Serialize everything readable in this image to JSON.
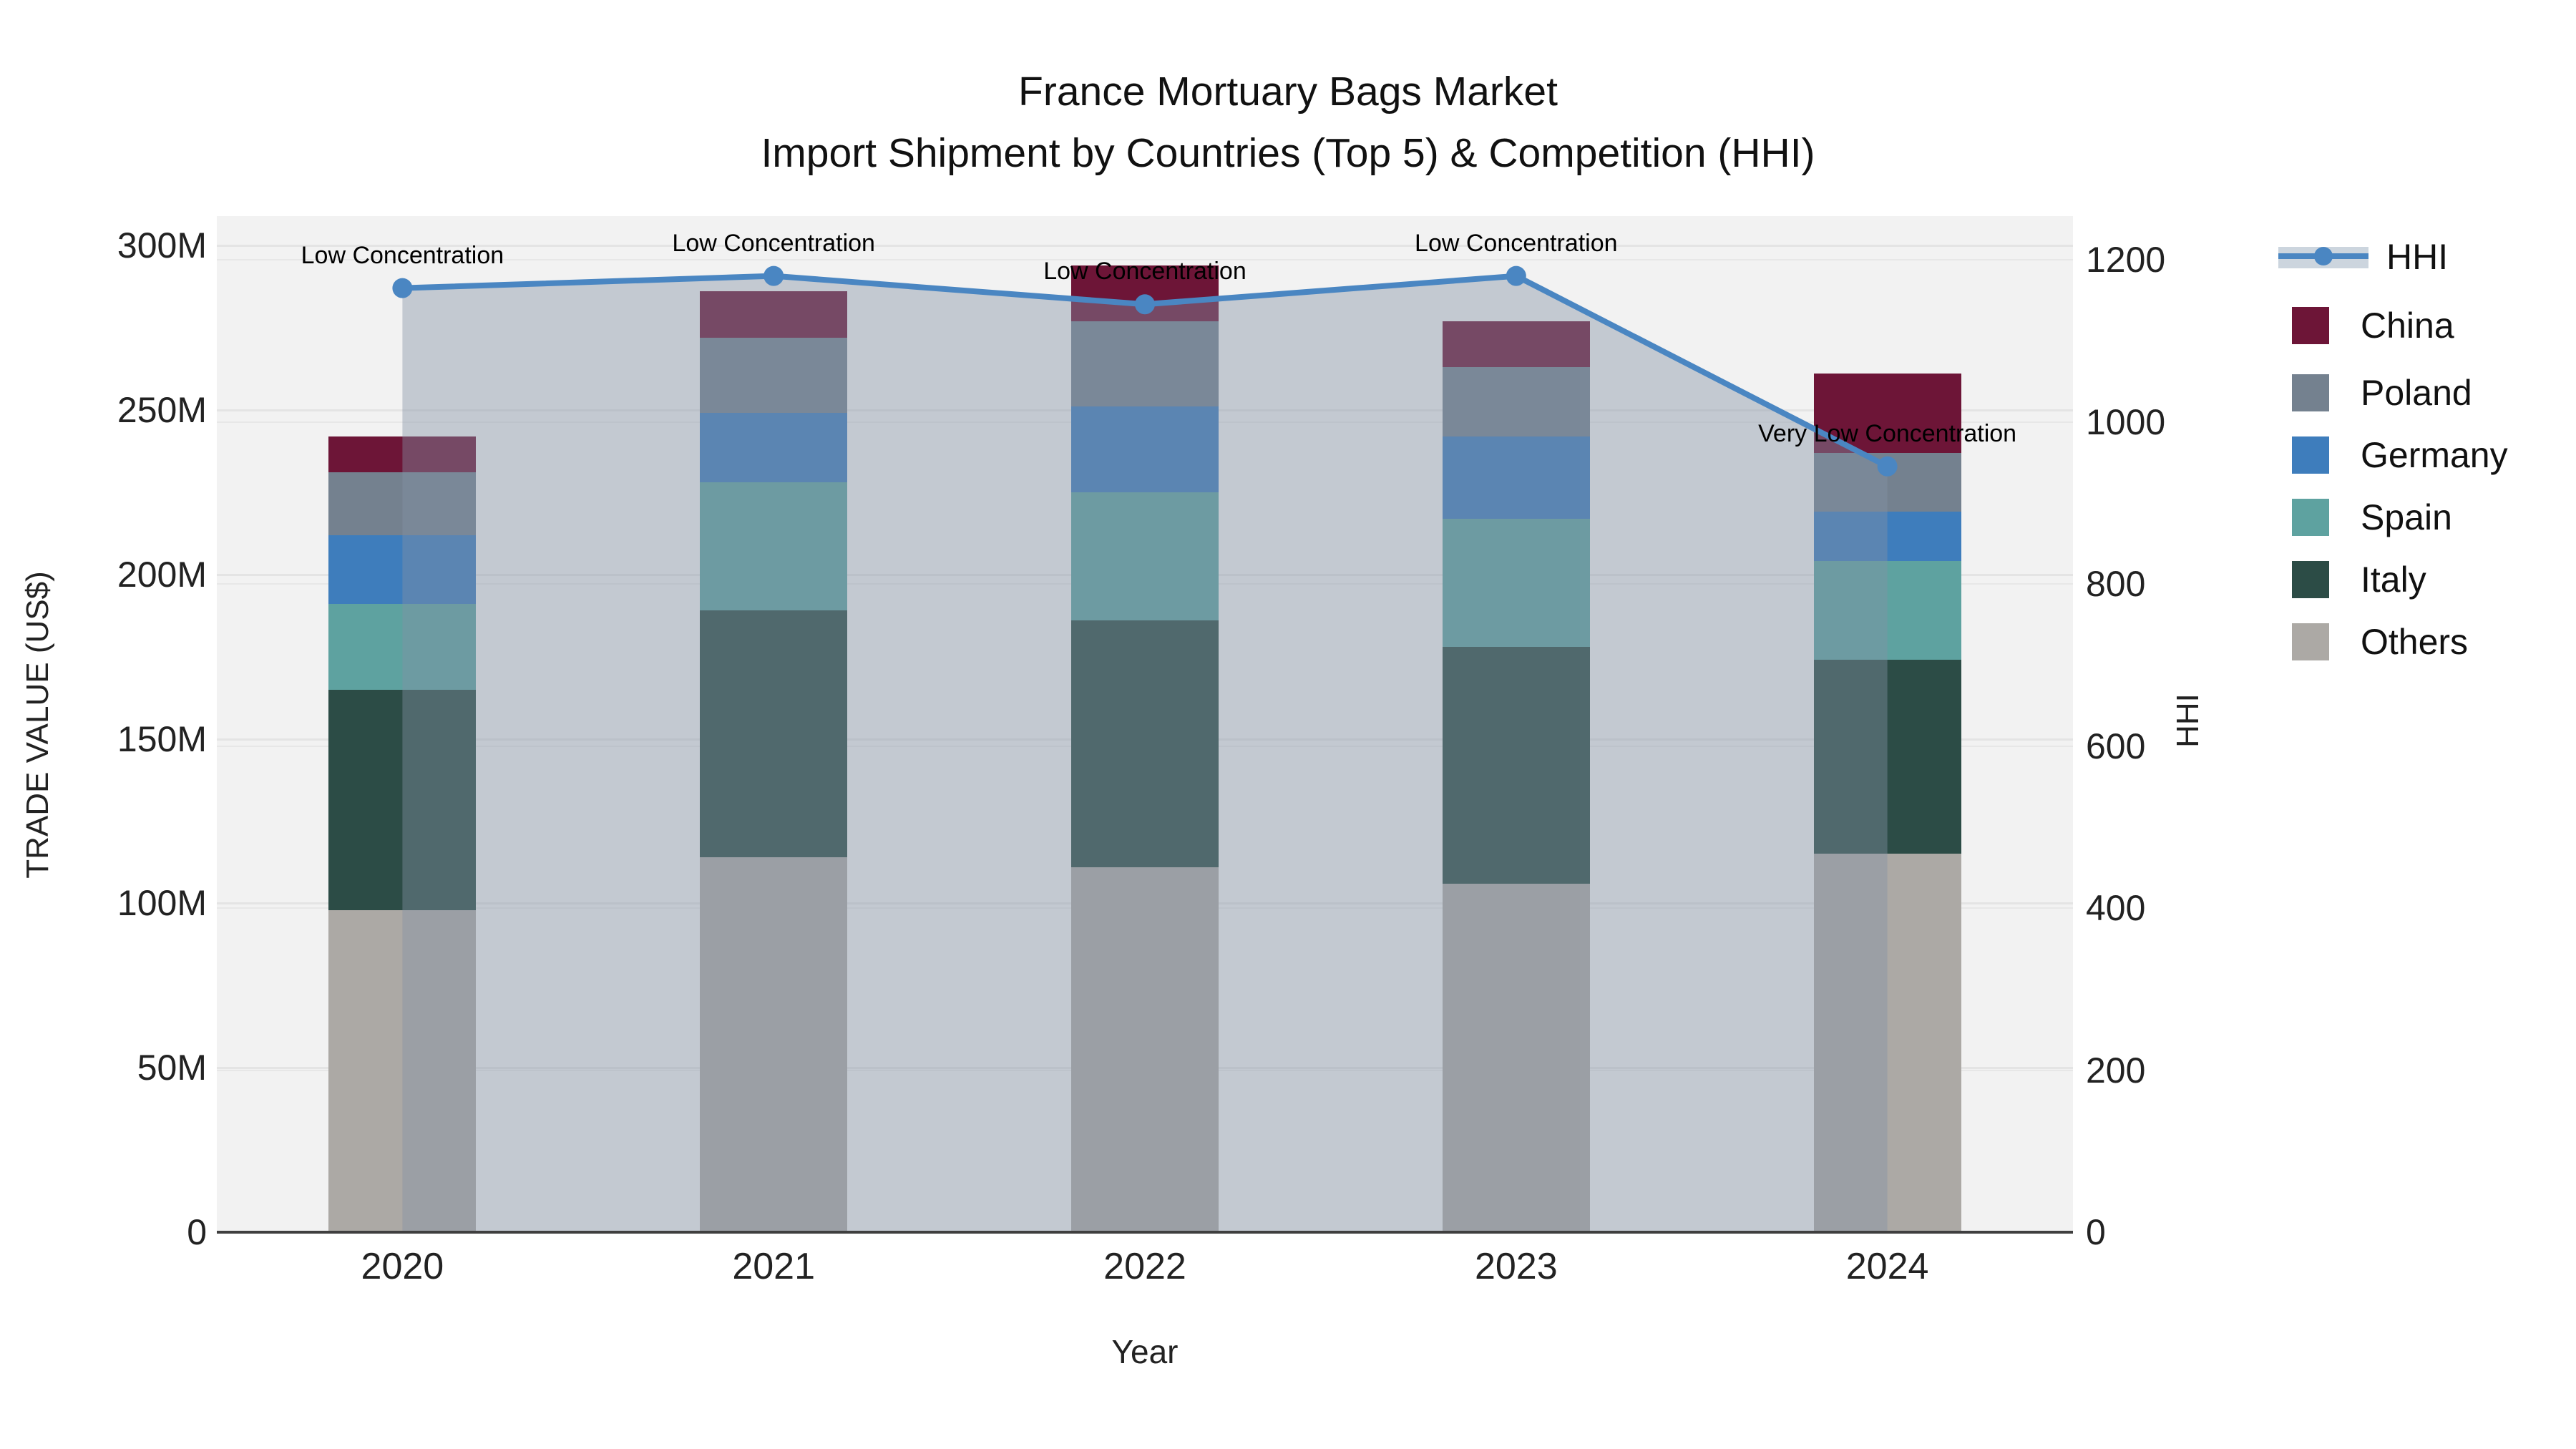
{
  "title": {
    "line1": "France Mortuary Bags Market",
    "line2": "Import Shipment by Countries (Top 5) & Competition (HHI)"
  },
  "axes": {
    "y_left": {
      "title": "TRADE VALUE (US$)",
      "ticks": [
        {
          "label": "300M",
          "value": 300
        },
        {
          "label": "250M",
          "value": 250
        },
        {
          "label": "200M",
          "value": 200
        },
        {
          "label": "150M",
          "value": 150
        },
        {
          "label": "100M",
          "value": 100
        },
        {
          "label": "50M",
          "value": 50
        },
        {
          "label": "0",
          "value": 0
        }
      ],
      "range": [
        0,
        300
      ],
      "unit": "M US$"
    },
    "y_right": {
      "title": "HHI",
      "ticks": [
        {
          "label": "1200",
          "value": 1200
        },
        {
          "label": "1000",
          "value": 1000
        },
        {
          "label": "800",
          "value": 800
        },
        {
          "label": "600",
          "value": 600
        },
        {
          "label": "400",
          "value": 400
        },
        {
          "label": "200",
          "value": 200
        },
        {
          "label": "0",
          "value": 0
        }
      ],
      "range": [
        0,
        1200
      ]
    },
    "x": {
      "title": "Year",
      "ticks": [
        "2020",
        "2021",
        "2022",
        "2023",
        "2024"
      ]
    }
  },
  "legend": {
    "items": [
      {
        "label": "HHI",
        "type": "line"
      },
      {
        "label": "China",
        "type": "swatch",
        "color": "#6D1537"
      },
      {
        "label": "Poland",
        "type": "swatch",
        "color": "#74818F"
      },
      {
        "label": "Germany",
        "type": "swatch",
        "color": "#3E7DBC"
      },
      {
        "label": "Spain",
        "type": "swatch",
        "color": "#5EA2A0"
      },
      {
        "label": "Italy",
        "type": "swatch",
        "color": "#2C4C46"
      },
      {
        "label": "Others",
        "type": "swatch",
        "color": "#ACA9A5"
      }
    ]
  },
  "chart_data": {
    "type": "combo_stacked_bar_line",
    "categories": [
      "2020",
      "2021",
      "2022",
      "2023",
      "2024"
    ],
    "bar_value_unit": "million US$",
    "series": [
      {
        "name": "Others",
        "values": [
          98,
          114,
          111,
          106,
          115
        ],
        "color": "#ACA9A5"
      },
      {
        "name": "Italy",
        "values": [
          67,
          75,
          75,
          72,
          59
        ],
        "color": "#2C4C46"
      },
      {
        "name": "Spain",
        "values": [
          26,
          39,
          39,
          39,
          30
        ],
        "color": "#5EA2A0"
      },
      {
        "name": "Germany",
        "values": [
          21,
          21,
          26,
          25,
          15
        ],
        "color": "#3E7DBC"
      },
      {
        "name": "Poland",
        "values": [
          19,
          23,
          26,
          21,
          18
        ],
        "color": "#74818F"
      },
      {
        "name": "China",
        "values": [
          11,
          14,
          17,
          14,
          24
        ],
        "color": "#6D1537"
      }
    ],
    "stack_totals": [
      242,
      286,
      294,
      277,
      261
    ],
    "line": {
      "name": "HHI",
      "values": [
        1165,
        1180,
        1145,
        1180,
        945
      ],
      "color": "#4A86C2",
      "area_fill": "rgba(130,145,165,0.42)"
    },
    "annotations": [
      {
        "category": "2020",
        "text": "Low Concentration"
      },
      {
        "category": "2021",
        "text": "Low Concentration"
      },
      {
        "category": "2022",
        "text": "Low Concentration"
      },
      {
        "category": "2023",
        "text": "Low Concentration"
      },
      {
        "category": "2024",
        "text": "Very Low Concentration"
      }
    ],
    "title": "France Mortuary Bags Market — Import Shipment by Countries (Top 5) & Competition (HHI)",
    "xlabel": "Year",
    "ylabel_left": "TRADE VALUE (US$)",
    "ylabel_right": "HHI",
    "ylim_left": [
      0,
      300
    ],
    "ylim_right": [
      0,
      1200
    ],
    "grid": true,
    "legend_position": "right",
    "plot_background": "#F2F2F2"
  },
  "colors": {
    "page_background": "#FFFFFF",
    "plot_background": "#F2F2F2",
    "axis_line": "#3F3F3F",
    "hhi_line": "#4A86C2",
    "hhi_area_fill": "rgba(130,145,165,0.42)",
    "legend_band": "#CCD5DE"
  }
}
